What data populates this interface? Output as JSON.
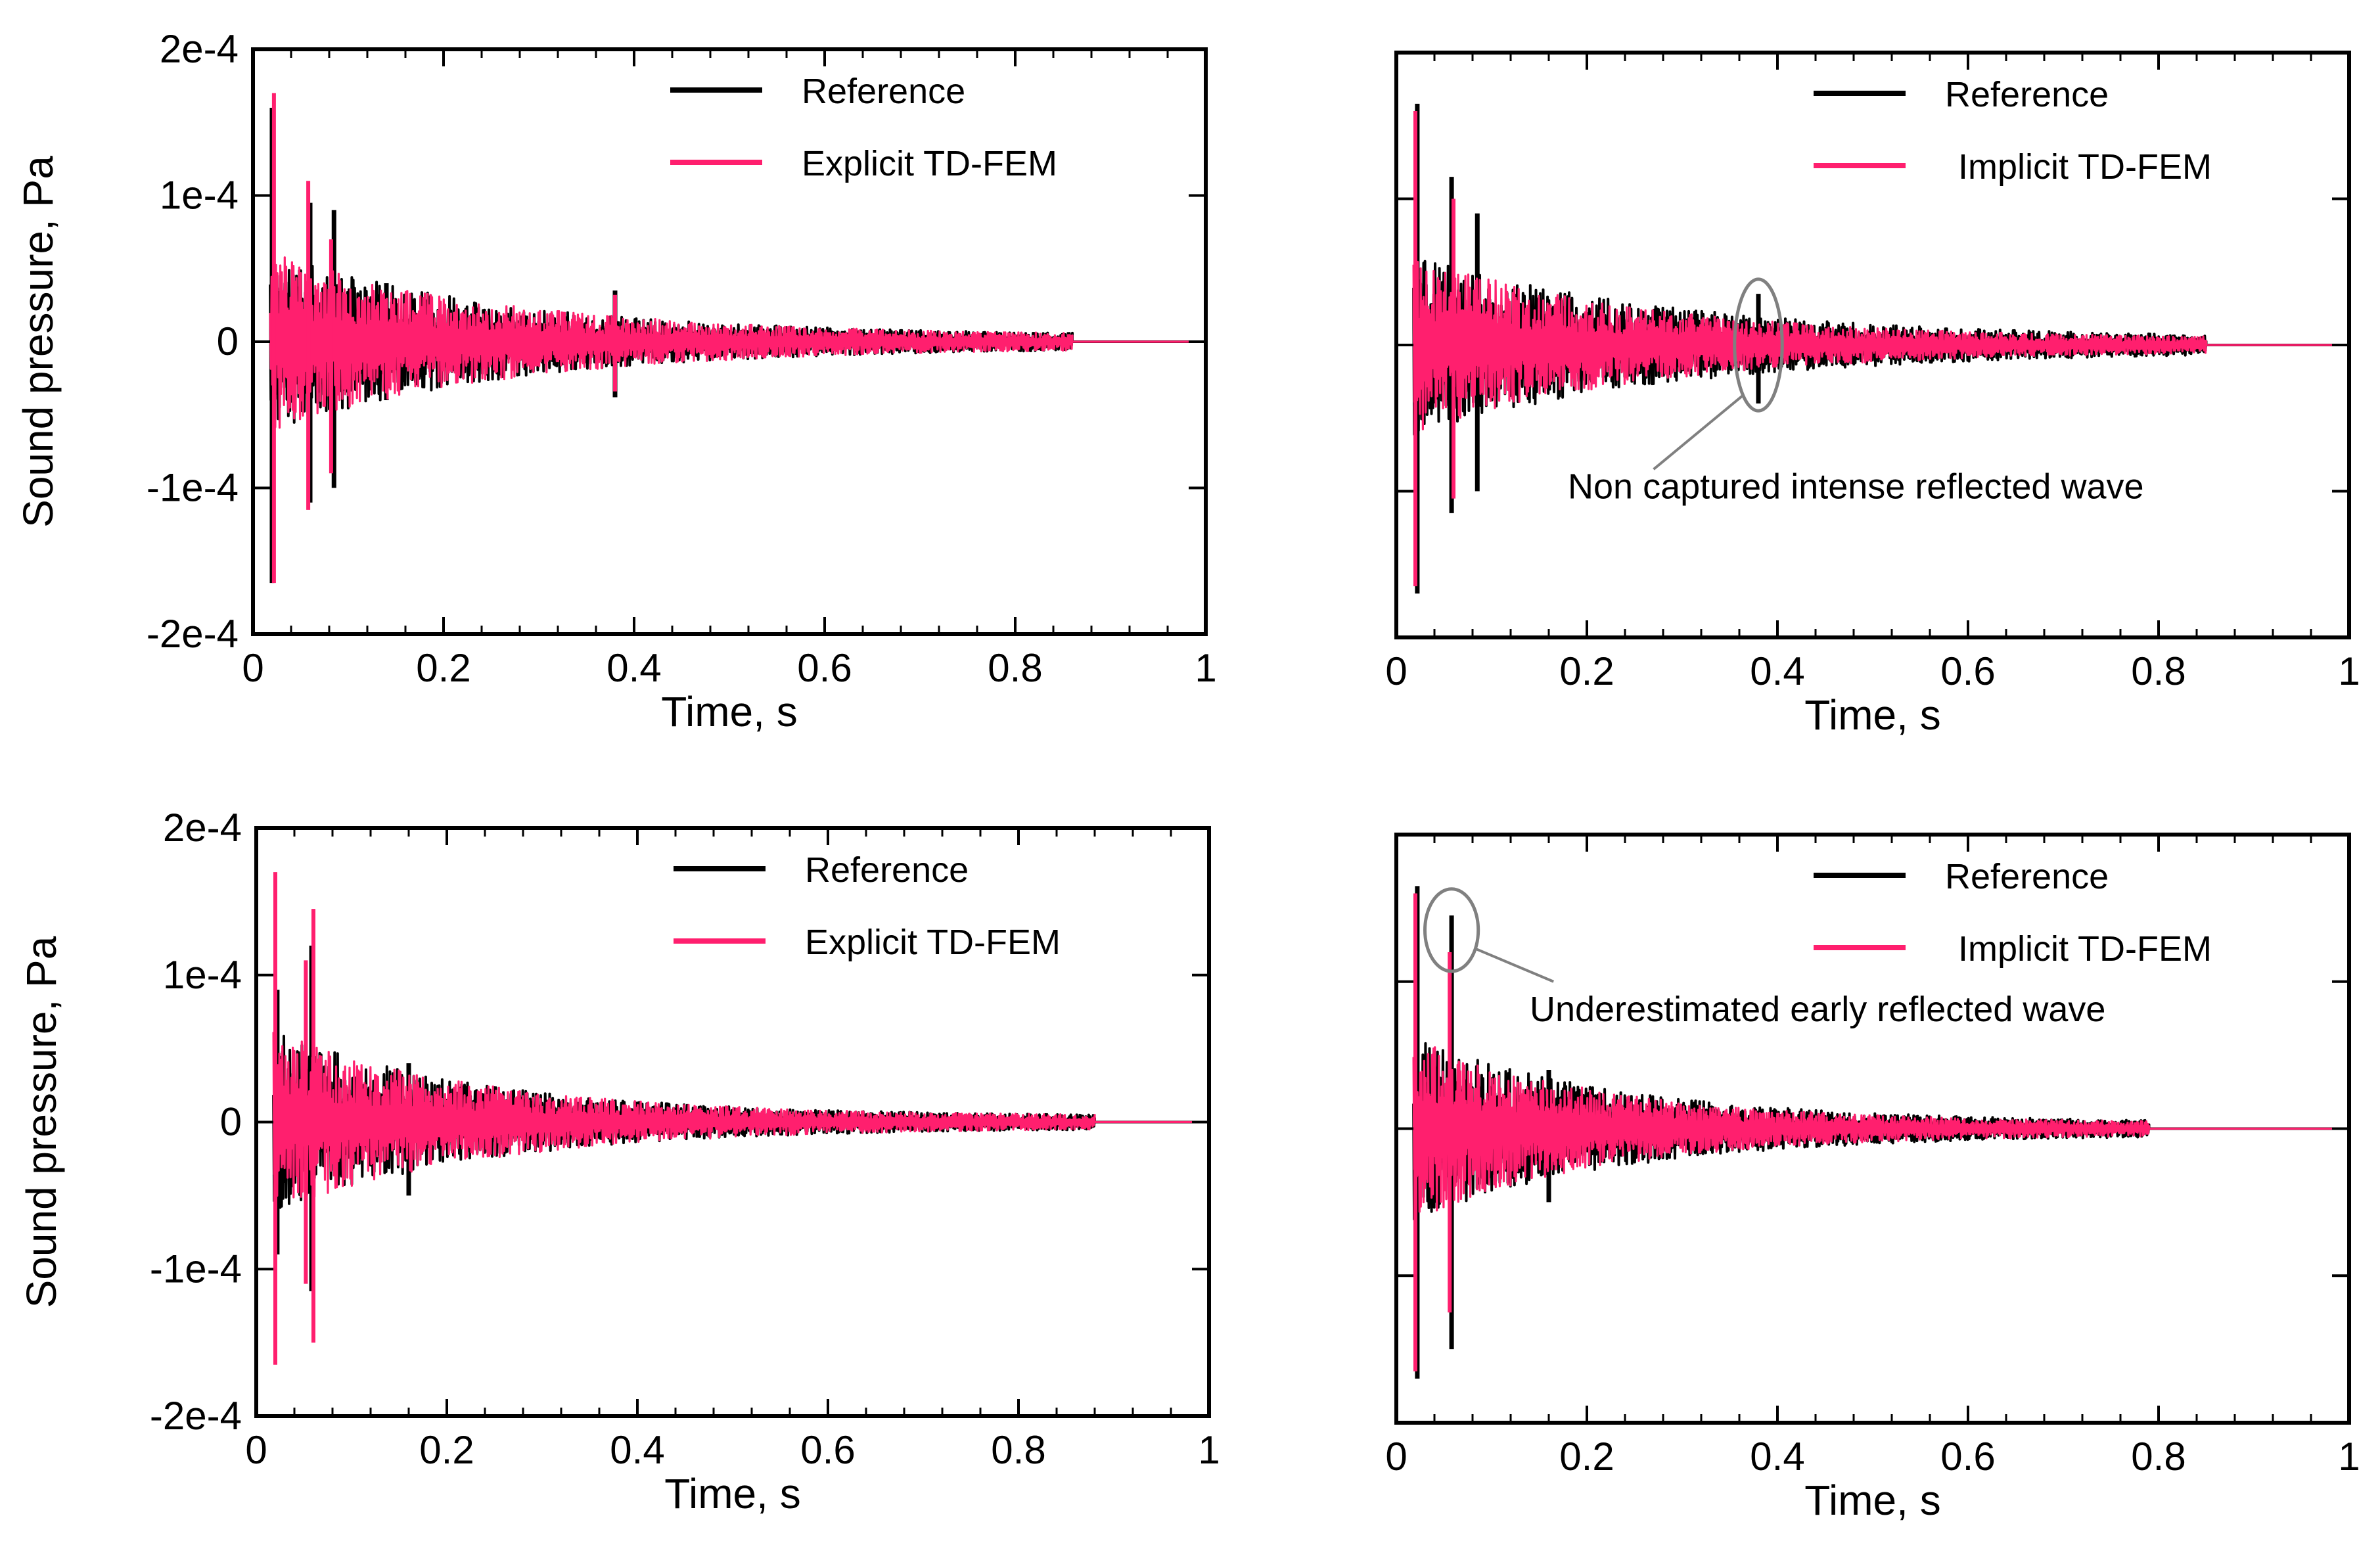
{
  "colors": {
    "reference": "#000000",
    "td_fem": "#ff1f6e",
    "annotation": "#808080",
    "frame": "#000000"
  },
  "chart_data": [
    {
      "id": "top-left",
      "type": "line",
      "xlabel": "Time, s",
      "ylabel": "Sound pressure, Pa",
      "xlim": [
        0,
        1
      ],
      "ylim": [
        -0.0002,
        0.0002
      ],
      "xticks": [
        0,
        0.2,
        0.4,
        0.6,
        0.8,
        1
      ],
      "xtick_labels": [
        "0",
        "0.2",
        "0.4",
        "0.6",
        "0.8",
        "1"
      ],
      "yticks": [
        -0.0002,
        -0.0001,
        0,
        0.0001,
        0.0002
      ],
      "ytick_labels": [
        "-2e-4",
        "-1e-4",
        "0",
        "1e-4",
        "2e-4"
      ],
      "legend": [
        "Reference",
        "Explicit TD-FEM"
      ],
      "legend_position": "top-right",
      "series": [
        {
          "name": "Reference",
          "color_key": "reference",
          "env_end": 0.86,
          "decay": 0.25,
          "seed": 11,
          "spikes": [
            [
              0.02,
              0.00016,
              -0.000165
            ],
            [
              0.06,
              9.5e-05,
              -0.00011
            ],
            [
              0.085,
              9e-05,
              -0.0001
            ],
            [
              0.14,
              4e-05,
              -4e-05
            ],
            [
              0.38,
              3.5e-05,
              -3.8e-05
            ]
          ]
        },
        {
          "name": "Explicit TD-FEM",
          "color_key": "td_fem",
          "env_end": 0.86,
          "decay": 0.25,
          "seed": 23,
          "spikes": [
            [
              0.022,
              0.00017,
              -0.000165
            ],
            [
              0.058,
              0.00011,
              -0.000115
            ],
            [
              0.082,
              7e-05,
              -9e-05
            ],
            [
              0.38,
              3.2e-05,
              -3.4e-05
            ]
          ]
        }
      ],
      "annotations": []
    },
    {
      "id": "top-right",
      "type": "line",
      "xlabel": "Time, s",
      "ylabel": "",
      "xlim": [
        0,
        1
      ],
      "ylim": [
        -0.0002,
        0.0002
      ],
      "xticks": [
        0,
        0.2,
        0.4,
        0.6,
        0.8,
        1
      ],
      "xtick_labels": [
        "0",
        "0.2",
        "0.4",
        "0.6",
        "0.8",
        "1"
      ],
      "yticks": [
        -0.0002,
        -0.0001,
        0,
        0.0001,
        0.0002
      ],
      "ytick_labels": [],
      "legend": [
        "Reference",
        "Implicit TD-FEM"
      ],
      "legend_position": "top-right",
      "series": [
        {
          "name": "Reference",
          "color_key": "reference",
          "env_end": 0.85,
          "decay": 0.28,
          "seed": 37,
          "spikes": [
            [
              0.022,
              0.000165,
              -0.00017
            ],
            [
              0.058,
              0.000115,
              -0.000115
            ],
            [
              0.085,
              9e-05,
              -0.0001
            ],
            [
              0.38,
              3.5e-05,
              -4e-05
            ]
          ]
        },
        {
          "name": "Implicit TD-FEM",
          "color_key": "td_fem",
          "env_end": 0.85,
          "decay": 0.24,
          "seed": 41,
          "spikes": [
            [
              0.02,
              0.00016,
              -0.000165
            ],
            [
              0.06,
              0.0001,
              -0.000105
            ]
          ]
        }
      ],
      "annotations": [
        {
          "text": "Non captured intense reflected wave",
          "circle_x": 0.38,
          "circle_y": 0.0,
          "rx": 0.025,
          "ry": 4.5e-05,
          "label_x": 0.18,
          "label_y": -0.000105,
          "line_to_x": 0.27,
          "line_to_y": -8.5e-05
        }
      ]
    },
    {
      "id": "bottom-left",
      "type": "line",
      "xlabel": "Time, s",
      "ylabel": "Sound pressure, Pa",
      "xlim": [
        0,
        1
      ],
      "ylim": [
        -0.0002,
        0.0002
      ],
      "xticks": [
        0,
        0.2,
        0.4,
        0.6,
        0.8,
        1
      ],
      "xtick_labels": [
        "0",
        "0.2",
        "0.4",
        "0.6",
        "0.8",
        "1"
      ],
      "yticks": [
        -0.0002,
        -0.0001,
        0,
        0.0001,
        0.0002
      ],
      "ytick_labels": [
        "-2e-4",
        "-1e-4",
        "0",
        "1e-4",
        "2e-4"
      ],
      "legend": [
        "Reference",
        "Explicit TD-FEM"
      ],
      "legend_position": "top-right",
      "series": [
        {
          "name": "Reference",
          "color_key": "reference",
          "env_end": 0.88,
          "decay": 0.22,
          "seed": 53,
          "spikes": [
            [
              0.022,
              9e-05,
              -9e-05
            ],
            [
              0.058,
              0.00012,
              -0.000115
            ],
            [
              0.16,
              4e-05,
              -5e-05
            ]
          ]
        },
        {
          "name": "Explicit TD-FEM",
          "color_key": "td_fem",
          "env_end": 0.88,
          "decay": 0.22,
          "seed": 67,
          "spikes": [
            [
              0.02,
              0.00017,
              -0.000165
            ],
            [
              0.06,
              0.000145,
              -0.00015
            ],
            [
              0.052,
              0.00011,
              -0.00011
            ]
          ]
        }
      ],
      "annotations": []
    },
    {
      "id": "bottom-right",
      "type": "line",
      "xlabel": "Time, s",
      "ylabel": "",
      "xlim": [
        0,
        1
      ],
      "ylim": [
        -0.0002,
        0.0002
      ],
      "xticks": [
        0,
        0.2,
        0.4,
        0.6,
        0.8,
        1
      ],
      "xtick_labels": [
        "0",
        "0.2",
        "0.4",
        "0.6",
        "0.8",
        "1"
      ],
      "yticks": [
        -0.0002,
        -0.0001,
        0,
        0.0001,
        0.0002
      ],
      "ytick_labels": [],
      "legend": [
        "Reference",
        "Implicit TD-FEM"
      ],
      "legend_position": "top-right",
      "series": [
        {
          "name": "Reference",
          "color_key": "reference",
          "env_end": 0.79,
          "decay": 0.22,
          "seed": 79,
          "spikes": [
            [
              0.022,
              0.000165,
              -0.00017
            ],
            [
              0.058,
              0.000145,
              -0.00015
            ],
            [
              0.16,
              4e-05,
              -5e-05
            ]
          ]
        },
        {
          "name": "Implicit TD-FEM",
          "color_key": "td_fem",
          "env_end": 0.79,
          "decay": 0.2,
          "seed": 83,
          "spikes": [
            [
              0.02,
              0.00016,
              -0.000165
            ],
            [
              0.056,
              0.00012,
              -0.000125
            ]
          ]
        }
      ],
      "annotations": [
        {
          "text": "Underestimated early reflected wave",
          "circle_x": 0.058,
          "circle_y": 0.000135,
          "rx": 0.028,
          "ry": 2.8e-05,
          "label_x": 0.14,
          "label_y": 7.3e-05,
          "line_to_x": 0.165,
          "line_to_y": 0.0001
        }
      ]
    }
  ]
}
